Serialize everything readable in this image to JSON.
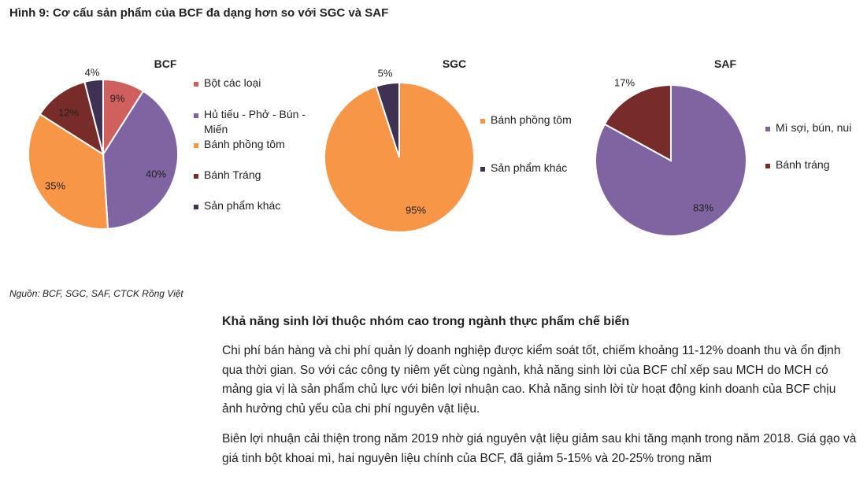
{
  "figure_title": "Hình 9: Cơ cấu sản phẩm của BCF đa dạng hơn so với SGC và SAF",
  "source": "Nguồn: BCF, SGC, SAF, CTCK Rồng Việt",
  "section_heading": "Khả năng sinh lời thuộc nhóm cao trong ngành thực phẩm chế biến",
  "paragraph1": "Chi phí bán hàng và chi phí quản lý doanh nghiệp được kiểm soát tốt, chiếm khoảng 11-12% doanh thu và ổn định qua thời gian. So với các công ty niêm yết cùng ngành, khả năng sinh lời của BCF chỉ xếp sau MCH do MCH có mảng gia vị là sản phẩm chủ lực với biên lợi nhuận cao. Khả năng sinh lời từ hoạt động kinh doanh của BCF chịu ảnh hưởng chủ yếu của chi phí nguyên vật liệu.",
  "paragraph2": "Biên lợi nhuận cải thiện trong năm 2019 nhờ giá nguyên vật liệu giảm sau khi tăng mạnh trong năm 2018. Giá gạo và giá tinh bột khoai mì, hai nguyên liệu chính của BCF, đã giảm 5-15% và 20-25% trong năm",
  "chart_data": [
    {
      "type": "pie",
      "title": "BCF",
      "legend_position": "right",
      "slices": [
        {
          "name": "Bột các loại",
          "value": 9,
          "label": "9%",
          "color": "#d0605e"
        },
        {
          "name": "Hủ tiếu - Phở - Bún - Miến",
          "value": 40,
          "label": "40%",
          "color": "#8064a2"
        },
        {
          "name": "Bánh phồng tôm",
          "value": 35,
          "label": "35%",
          "color": "#f79646"
        },
        {
          "name": "Bánh Tráng",
          "value": 12,
          "label": "12%",
          "color": "#772c2a"
        },
        {
          "name": "Sản phẩm khác",
          "value": 4,
          "label": "4%",
          "color": "#3f3151"
        }
      ]
    },
    {
      "type": "pie",
      "title": "SGC",
      "legend_position": "right",
      "slices": [
        {
          "name": "Bánh phồng tôm",
          "value": 95,
          "label": "95%",
          "color": "#f79646"
        },
        {
          "name": "Sản phẩm khác",
          "value": 5,
          "label": "5%",
          "color": "#3f3151"
        }
      ]
    },
    {
      "type": "pie",
      "title": "SAF",
      "legend_position": "right",
      "slices": [
        {
          "name": "Mì sợi, bún, nui",
          "value": 83,
          "label": "83%",
          "color": "#8064a2"
        },
        {
          "name": "Bánh tráng",
          "value": 17,
          "label": "17%",
          "color": "#772c2a"
        }
      ]
    }
  ]
}
